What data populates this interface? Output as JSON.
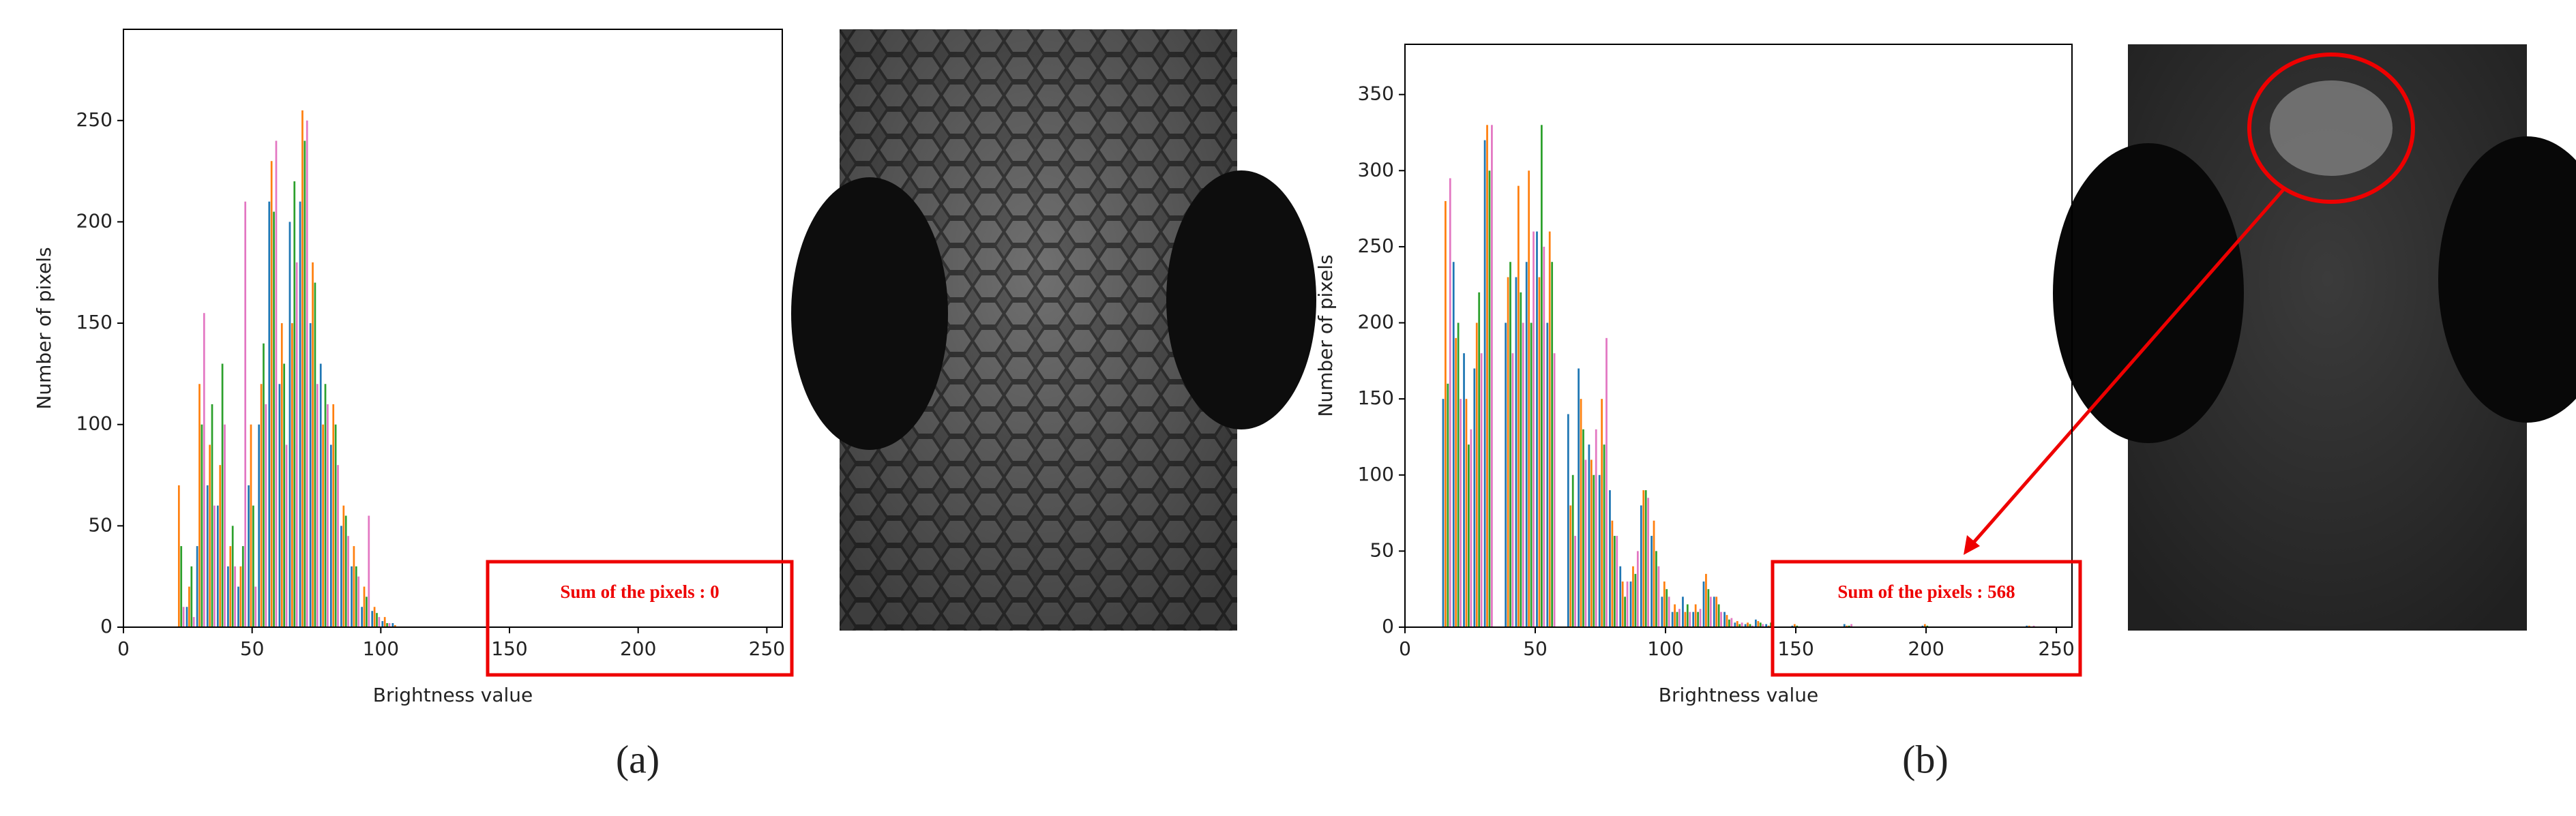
{
  "chart_data": [
    {
      "type": "bar",
      "caption": "(a)",
      "xlabel": "Brightness value",
      "ylabel": "Number of pixels",
      "annotation": "Sum of the pixels : 0",
      "xlim": [
        0,
        256
      ],
      "ylim": [
        0,
        295
      ],
      "xticks": [
        0,
        50,
        100,
        150,
        200,
        250
      ],
      "yticks": [
        0,
        50,
        100,
        150,
        200,
        250
      ],
      "x": [
        22,
        26,
        30,
        34,
        38,
        42,
        46,
        50,
        54,
        58,
        62,
        66,
        70,
        74,
        78,
        82,
        86,
        90,
        94,
        98,
        102,
        106
      ],
      "series": [
        {
          "color": "#1f77b4",
          "values": [
            0,
            10,
            40,
            70,
            60,
            30,
            20,
            70,
            100,
            210,
            120,
            200,
            210,
            150,
            130,
            90,
            50,
            30,
            10,
            8,
            3,
            2
          ]
        },
        {
          "color": "#ff7f0e",
          "values": [
            70,
            20,
            120,
            90,
            80,
            40,
            30,
            100,
            120,
            230,
            150,
            150,
            255,
            180,
            100,
            110,
            60,
            40,
            20,
            10,
            5,
            1
          ]
        },
        {
          "color": "#2ca02c",
          "values": [
            40,
            30,
            100,
            110,
            130,
            50,
            40,
            60,
            140,
            205,
            130,
            220,
            240,
            170,
            120,
            100,
            55,
            30,
            15,
            7,
            2,
            0
          ]
        },
        {
          "color": "#e377c2",
          "values": [
            10,
            5,
            155,
            60,
            100,
            30,
            210,
            20,
            110,
            240,
            90,
            180,
            250,
            120,
            110,
            80,
            45,
            25,
            55,
            5,
            2,
            0
          ]
        }
      ]
    },
    {
      "type": "bar",
      "caption": "(b)",
      "xlabel": "Brightness value",
      "ylabel": "Number of pixels",
      "annotation": "Sum of the pixels : 568",
      "xlim": [
        0,
        256
      ],
      "ylim": [
        0,
        383
      ],
      "xticks": [
        0,
        50,
        100,
        150,
        200,
        250
      ],
      "yticks": [
        0,
        50,
        100,
        150,
        200,
        250,
        300,
        350
      ],
      "x": [
        16,
        20,
        24,
        28,
        32,
        36,
        40,
        44,
        48,
        52,
        56,
        60,
        64,
        68,
        72,
        76,
        80,
        84,
        88,
        92,
        96,
        100,
        104,
        108,
        112,
        116,
        120,
        124,
        128,
        132,
        136,
        140,
        150,
        170,
        200,
        240
      ],
      "series": [
        {
          "color": "#1f77b4",
          "values": [
            150,
            240,
            180,
            170,
            320,
            0,
            200,
            230,
            240,
            260,
            200,
            0,
            140,
            170,
            120,
            100,
            90,
            40,
            30,
            80,
            60,
            20,
            10,
            20,
            10,
            30,
            20,
            10,
            3,
            2,
            5,
            2,
            1,
            2,
            1,
            1
          ]
        },
        {
          "color": "#ff7f0e",
          "values": [
            280,
            190,
            150,
            200,
            330,
            0,
            230,
            290,
            300,
            230,
            260,
            0,
            80,
            150,
            110,
            150,
            70,
            30,
            40,
            90,
            70,
            30,
            15,
            10,
            15,
            35,
            20,
            8,
            4,
            3,
            4,
            1,
            2,
            1,
            2,
            1
          ]
        },
        {
          "color": "#2ca02c",
          "values": [
            160,
            200,
            120,
            220,
            300,
            0,
            240,
            220,
            200,
            330,
            240,
            0,
            100,
            130,
            100,
            120,
            60,
            20,
            35,
            90,
            50,
            25,
            10,
            15,
            10,
            25,
            15,
            5,
            2,
            2,
            3,
            3,
            1,
            1,
            1,
            0
          ]
        },
        {
          "color": "#e377c2",
          "values": [
            295,
            150,
            130,
            180,
            330,
            0,
            180,
            200,
            260,
            250,
            180,
            0,
            60,
            110,
            130,
            190,
            60,
            30,
            50,
            85,
            40,
            20,
            12,
            10,
            12,
            20,
            10,
            6,
            3,
            1,
            2,
            2,
            0,
            2,
            0,
            1
          ]
        }
      ]
    }
  ]
}
